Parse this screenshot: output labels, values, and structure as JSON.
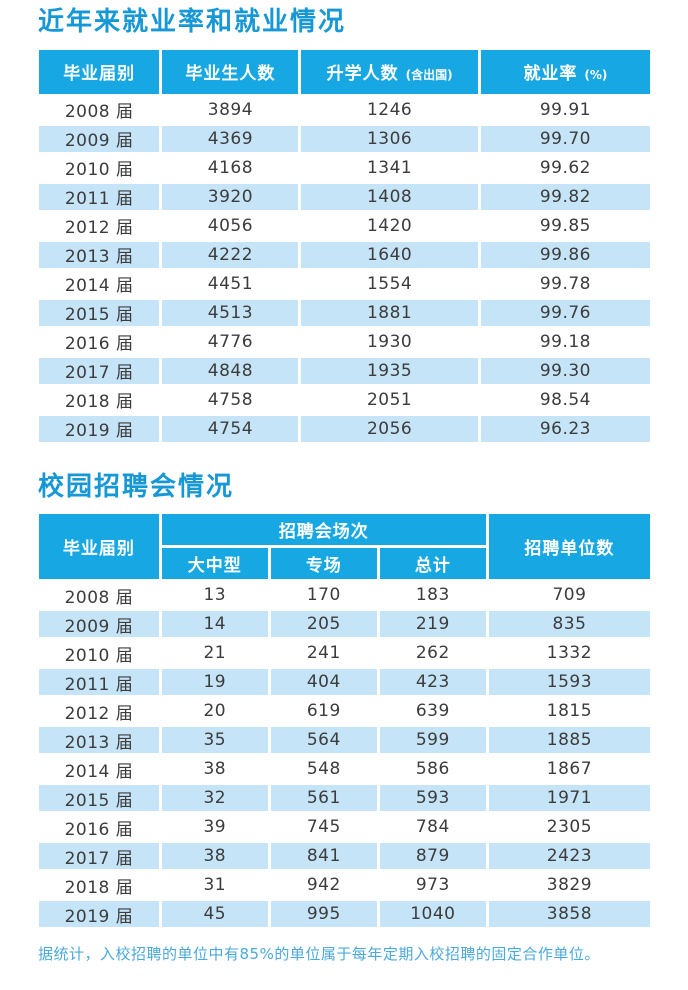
{
  "colors": {
    "header_blue": "#17a7e2",
    "row_stripe_blue": "#c6e4f7",
    "title_blue": "#1697d6",
    "footer_blue": "#4aa9dd",
    "body_text": "#3c3c3c"
  },
  "employment_table": {
    "title": "近年来就业率和就业情况",
    "columns": {
      "class_year": "毕业届别",
      "graduates": "毕业生人数",
      "further_study": "升学人数",
      "further_study_note": "(含出国)",
      "employment_rate": "就业率",
      "employment_rate_note": "(%)"
    },
    "rows": [
      [
        "2008 届",
        "3894",
        "1246",
        "99.91"
      ],
      [
        "2009 届",
        "4369",
        "1306",
        "99.70"
      ],
      [
        "2010 届",
        "4168",
        "1341",
        "99.62"
      ],
      [
        "2011 届",
        "3920",
        "1408",
        "99.82"
      ],
      [
        "2012 届",
        "4056",
        "1420",
        "99.85"
      ],
      [
        "2013 届",
        "4222",
        "1640",
        "99.86"
      ],
      [
        "2014 届",
        "4451",
        "1554",
        "99.78"
      ],
      [
        "2015 届",
        "4513",
        "1881",
        "99.76"
      ],
      [
        "2016 届",
        "4776",
        "1930",
        "99.18"
      ],
      [
        "2017 届",
        "4848",
        "1935",
        "99.30"
      ],
      [
        "2018 届",
        "4758",
        "2051",
        "98.54"
      ],
      [
        "2019 届",
        "4754",
        "2056",
        "96.23"
      ]
    ]
  },
  "recruitment_table": {
    "title": "校园招聘会情况",
    "header": {
      "class_year": "毕业届别",
      "fairs_group": "招聘会场次",
      "sub_columns": [
        "大中型",
        "专场",
        "总计"
      ],
      "recruiting_units": "招聘单位数"
    },
    "rows": [
      [
        "2008 届",
        "13",
        "170",
        "183",
        "709"
      ],
      [
        "2009 届",
        "14",
        "205",
        "219",
        "835"
      ],
      [
        "2010 届",
        "21",
        "241",
        "262",
        "1332"
      ],
      [
        "2011 届",
        "19",
        "404",
        "423",
        "1593"
      ],
      [
        "2012 届",
        "20",
        "619",
        "639",
        "1815"
      ],
      [
        "2013 届",
        "35",
        "564",
        "599",
        "1885"
      ],
      [
        "2014 届",
        "38",
        "548",
        "586",
        "1867"
      ],
      [
        "2015 届",
        "32",
        "561",
        "593",
        "1971"
      ],
      [
        "2016 届",
        "39",
        "745",
        "784",
        "2305"
      ],
      [
        "2017 届",
        "38",
        "841",
        "879",
        "2423"
      ],
      [
        "2018 届",
        "31",
        "942",
        "973",
        "3829"
      ],
      [
        "2019 届",
        "45",
        "995",
        "1040",
        "3858"
      ]
    ]
  },
  "footer": {
    "note": "据统计，入校招聘的单位中有85%的单位属于每年定期入校招聘的固定合作单位。"
  }
}
